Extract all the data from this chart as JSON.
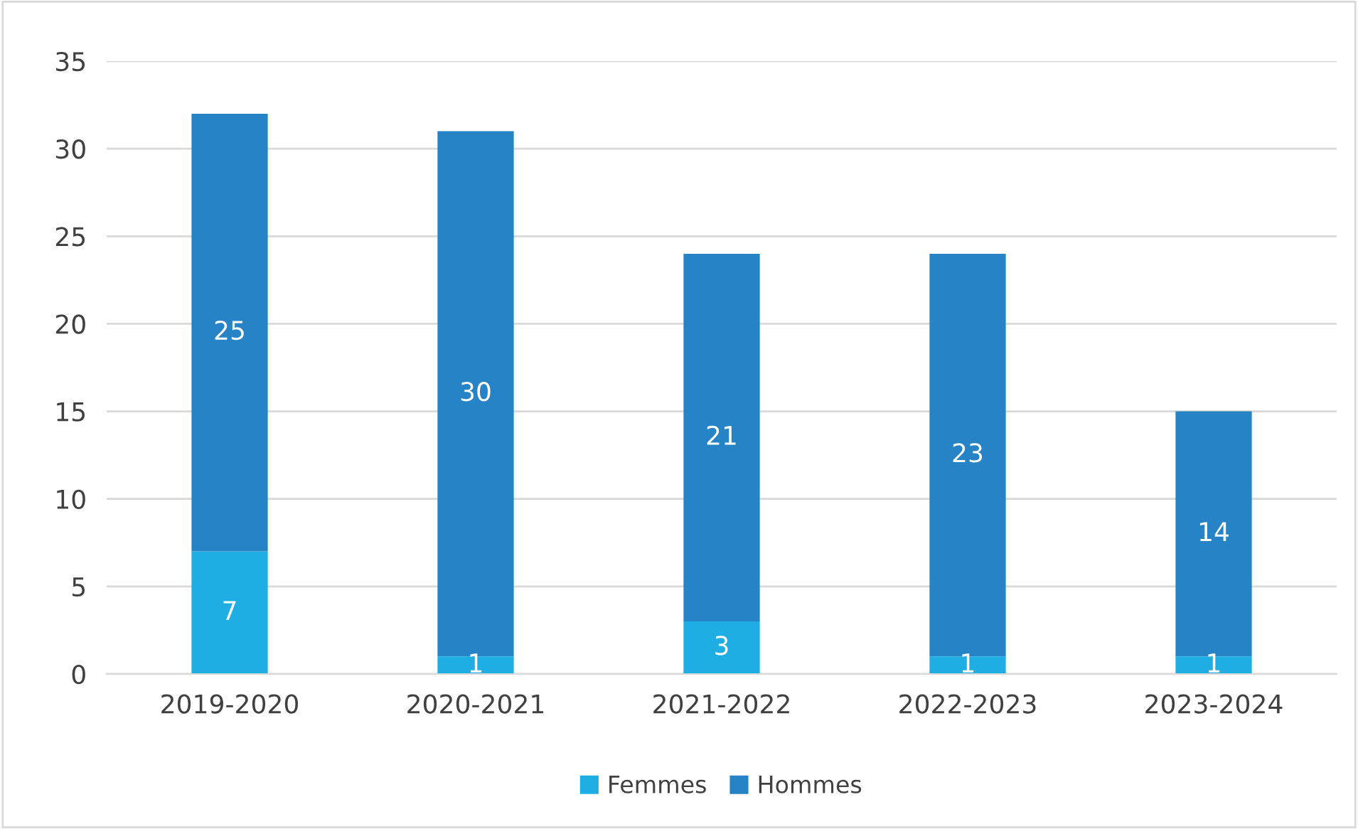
{
  "chart_data": {
    "type": "bar",
    "stacked": true,
    "categories": [
      "2019-2020",
      "2020-2021",
      "2021-2022",
      "2022-2023",
      "2023-2024"
    ],
    "series": [
      {
        "name": "Femmes",
        "color": "#1eaee4",
        "values": [
          7,
          1,
          3,
          1,
          1
        ]
      },
      {
        "name": "Hommes",
        "color": "#2683c6",
        "values": [
          25,
          30,
          21,
          23,
          14
        ]
      }
    ],
    "ylim": [
      0,
      35
    ],
    "yticks": [
      0,
      5,
      10,
      15,
      20,
      25,
      30,
      35
    ],
    "grid": "y",
    "legend": "bottom",
    "data_labels": true
  }
}
